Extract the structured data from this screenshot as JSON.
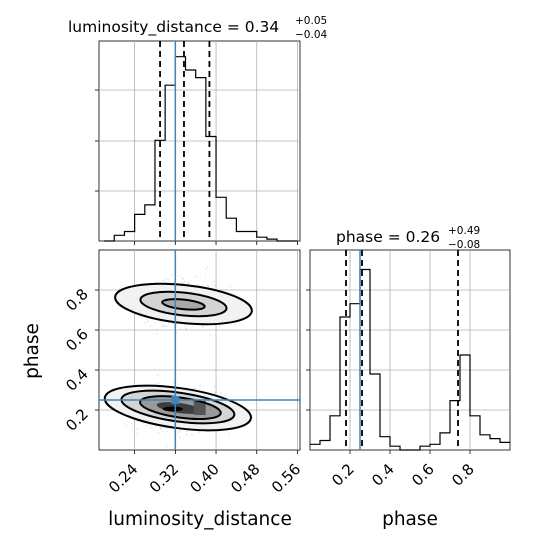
{
  "chart_data": {
    "type": "corner",
    "parameters": [
      "luminosity_distance",
      "phase"
    ],
    "axes_labels": {
      "x_left": "luminosity_distance",
      "x_right": "phase",
      "y_left": "phase"
    },
    "titles": {
      "luminosity_distance": {
        "text": "luminosity_distance = 0.34",
        "sup": "+0.05",
        "sub": "−0.04"
      },
      "phase": {
        "text": "phase = 0.26",
        "sup": "+0.49",
        "sub": "−0.08"
      }
    },
    "ticks": {
      "luminosity_distance": [
        "0.24",
        "0.32",
        "0.40",
        "0.48",
        "0.56"
      ],
      "phase_x": [
        "0.2",
        "0.4",
        "0.6",
        "0.8"
      ],
      "phase_y": [
        "0.2",
        "0.4",
        "0.6",
        "0.8"
      ]
    },
    "ranges": {
      "luminosity_distance": [
        0.17,
        0.565
      ],
      "phase": [
        0.0,
        1.0
      ]
    },
    "truth": {
      "luminosity_distance": 0.32,
      "phase": 0.25
    },
    "quantiles": {
      "luminosity_distance": [
        0.29,
        0.337,
        0.387
      ],
      "phase": [
        0.18,
        0.26,
        0.74
      ]
    },
    "hist_luminosity_distance": {
      "edges": [
        0.18,
        0.2,
        0.22,
        0.24,
        0.26,
        0.28,
        0.3,
        0.32,
        0.34,
        0.36,
        0.38,
        0.4,
        0.42,
        0.44,
        0.46,
        0.48,
        0.5,
        0.52,
        0.54,
        0.56
      ],
      "counts": [
        0.0,
        0.03,
        0.05,
        0.14,
        0.19,
        0.53,
        0.82,
        0.97,
        0.9,
        0.86,
        0.55,
        0.23,
        0.12,
        0.05,
        0.05,
        0.02,
        0.01,
        0.0,
        0.0
      ]
    },
    "hist_phase": {
      "edges": [
        0.0,
        0.05,
        0.1,
        0.15,
        0.2,
        0.25,
        0.3,
        0.35,
        0.4,
        0.45,
        0.5,
        0.55,
        0.6,
        0.65,
        0.7,
        0.75,
        0.8,
        0.85,
        0.9,
        0.95,
        1.0
      ],
      "counts": [
        0.03,
        0.05,
        0.18,
        0.7,
        0.77,
        0.95,
        0.4,
        0.07,
        0.02,
        0.0,
        0.0,
        0.02,
        0.03,
        0.09,
        0.26,
        0.5,
        0.18,
        0.08,
        0.06,
        0.04
      ]
    },
    "grid": true
  }
}
